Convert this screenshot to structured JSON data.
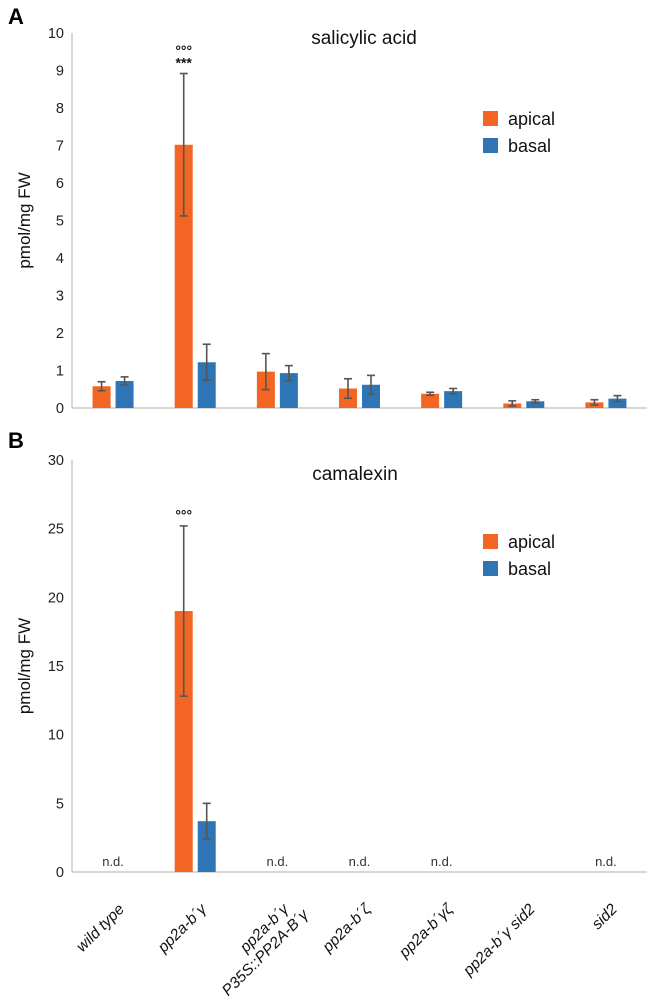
{
  "chart_data": [
    {
      "panel": "A",
      "type": "bar",
      "title": "salicylic acid",
      "ylabel": "pmol/mg FW",
      "ylim": [
        0,
        10
      ],
      "yticks": [
        "0",
        "1",
        "2",
        "3",
        "4",
        "5",
        "6",
        "7",
        "8",
        "9",
        "10"
      ],
      "legend_position": "top-right",
      "categories": [
        "wild type",
        "pp2a-b´γ",
        "pp2a-b´γ P35S::PP2A-B´γ",
        "pp2a-b´ζ",
        "pp2a-b´γζ",
        "pp2a-b´γ sid2",
        "sid2"
      ],
      "series": [
        {
          "name": "apical",
          "color": "#f26522",
          "values": [
            0.58,
            7.02,
            0.97,
            0.52,
            0.38,
            0.12,
            0.15
          ],
          "errors": [
            0.12,
            1.9,
            0.48,
            0.26,
            0.04,
            0.07,
            0.07
          ]
        },
        {
          "name": "basal",
          "color": "#2e75b6",
          "values": [
            0.72,
            1.22,
            0.93,
            0.62,
            0.45,
            0.18,
            0.25
          ],
          "errors": [
            0.11,
            0.48,
            0.2,
            0.25,
            0.07,
            0.04,
            0.08
          ]
        }
      ],
      "annotations": [
        {
          "category": "pp2a-b´γ",
          "series": "apical",
          "lines": [
            "°°°",
            "***"
          ]
        }
      ],
      "not_detected": []
    },
    {
      "panel": "B",
      "type": "bar",
      "title": "camalexin",
      "ylabel": "pmol/mg FW",
      "ylim": [
        0,
        30
      ],
      "yticks": [
        "0",
        "5",
        "10",
        "15",
        "20",
        "25",
        "30"
      ],
      "legend_position": "top-right",
      "categories": [
        "wild type",
        "pp2a-b´γ",
        "pp2a-b´γ P35S::PP2A-B´γ",
        "pp2a-b´ζ",
        "pp2a-b´γζ",
        "pp2a-b´γ sid2",
        "sid2"
      ],
      "series": [
        {
          "name": "apical",
          "color": "#f26522",
          "values": [
            0,
            19.0,
            0,
            0,
            0,
            0,
            0
          ],
          "errors": [
            0,
            6.2,
            0,
            0,
            0,
            0,
            0
          ]
        },
        {
          "name": "basal",
          "color": "#2e75b6",
          "values": [
            0,
            3.7,
            0,
            0,
            0,
            0,
            0
          ],
          "errors": [
            0,
            1.3,
            0,
            0,
            0,
            0,
            0
          ]
        }
      ],
      "annotations": [
        {
          "category": "pp2a-b´γ",
          "series": "apical",
          "lines": [
            "°°°"
          ]
        }
      ],
      "not_detected": [
        {
          "category": "wild type",
          "label": "n.d."
        },
        {
          "category": "pp2a-b´γ P35S::PP2A-B´γ",
          "label": "n.d."
        },
        {
          "category": "pp2a-b´ζ",
          "label": "n.d."
        },
        {
          "category": "pp2a-b´γζ",
          "label": "n.d."
        },
        {
          "category": "sid2",
          "label": "n.d."
        }
      ]
    }
  ],
  "x_category_labels": [
    [
      "wild type"
    ],
    [
      "pp2a-b´γ"
    ],
    [
      "pp2a-b´γ",
      "P35S::PP2A-B´γ"
    ],
    [
      "pp2a-b´ζ"
    ],
    [
      "pp2a-b´γζ"
    ],
    [
      "pp2a-b´γ sid2"
    ],
    [
      "sid2"
    ]
  ]
}
